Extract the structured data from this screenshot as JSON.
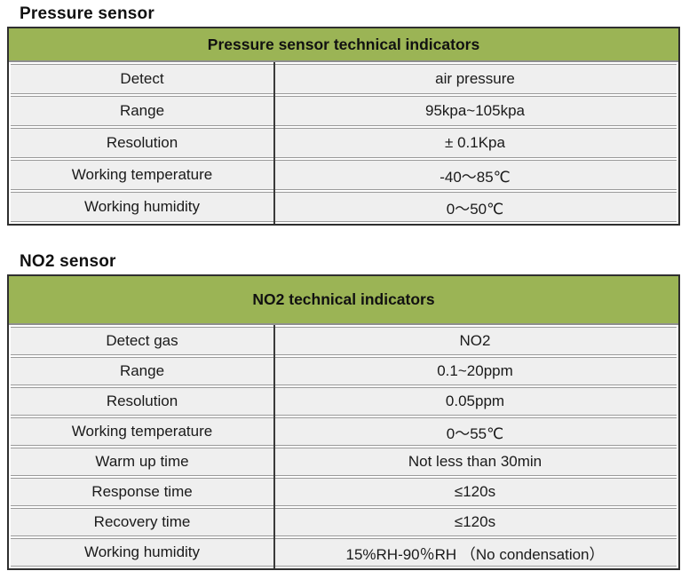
{
  "colors": {
    "header_green": "#9BB455",
    "cell_background": "#EFEFEF",
    "outer_border": "#2F2F2F",
    "row_separator": "#9A9A9A",
    "column_divider": "#3A3A3A",
    "text": "#1A1A1A"
  },
  "sections": [
    {
      "title": "Pressure sensor",
      "table_header": "Pressure sensor technical indicators",
      "rows": [
        {
          "label": "Detect",
          "value": "air pressure"
        },
        {
          "label": "Range",
          "value": "95kpa~105kpa"
        },
        {
          "label": "Resolution",
          "value": "± 0.1Kpa"
        },
        {
          "label": "Working temperature",
          "value": "-40～85℃"
        },
        {
          "label": "Working humidity",
          "value": "0～50℃"
        }
      ]
    },
    {
      "title": "NO2 sensor",
      "table_header": "NO2 technical indicators",
      "rows": [
        {
          "label": "Detect gas",
          "value": "NO2"
        },
        {
          "label": "Range",
          "value": "0.1~20ppm"
        },
        {
          "label": "Resolution",
          "value": "0.05ppm"
        },
        {
          "label": "Working temperature",
          "value": "0～55℃"
        },
        {
          "label": "Warm up time",
          "value": "Not less than 30min"
        },
        {
          "label": "Response time",
          "value": "≤120s"
        },
        {
          "label": "Recovery time",
          "value": "≤120s"
        },
        {
          "label": "Working humidity",
          "value": "15%RH-90％RH （No condensation）"
        }
      ]
    }
  ]
}
